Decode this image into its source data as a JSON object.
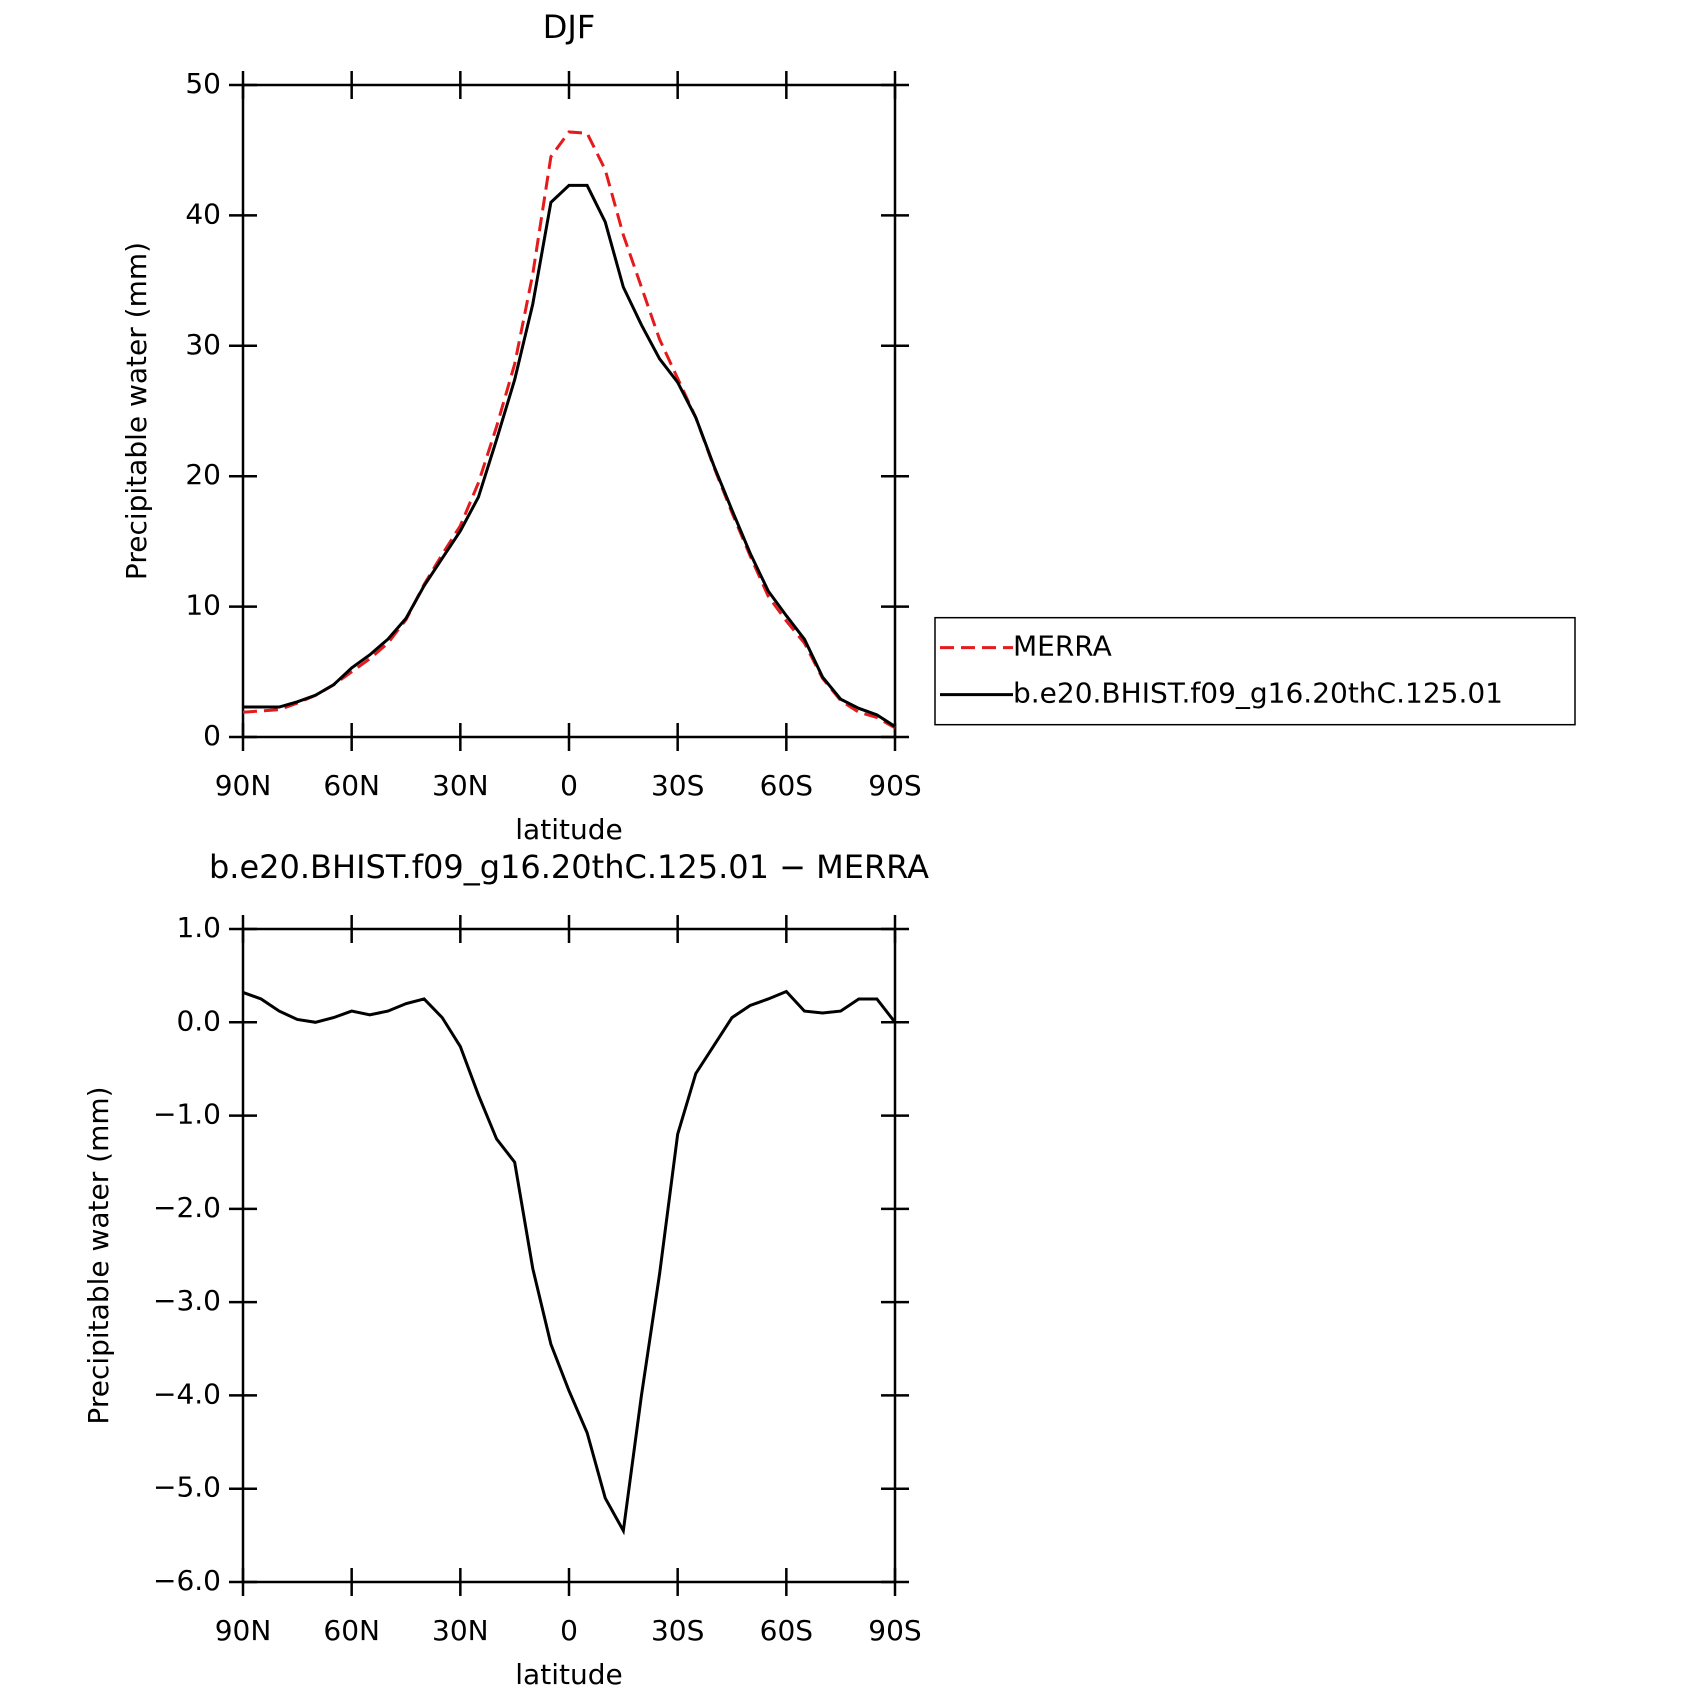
{
  "chart_data": [
    {
      "type": "line",
      "title": "DJF",
      "xlabel": "latitude",
      "ylabel": "Precipitable water (mm)",
      "x": [
        90,
        85,
        80,
        75,
        70,
        65,
        60,
        55,
        50,
        45,
        40,
        35,
        30,
        25,
        20,
        15,
        10,
        5,
        0,
        -5,
        -10,
        -15,
        -20,
        -25,
        -30,
        -35,
        -40,
        -45,
        -50,
        -55,
        -60,
        -65,
        -70,
        -75,
        -80,
        -85,
        -90
      ],
      "series": [
        {
          "name": "MERRA",
          "color": "#e41a1c",
          "linestyle": "dashed",
          "values": [
            1.9,
            2.0,
            2.1,
            2.6,
            3.2,
            4.0,
            5.0,
            6.0,
            7.2,
            9.0,
            11.7,
            14.0,
            16.2,
            19.5,
            23.8,
            28.6,
            35.5,
            44.5,
            46.4,
            46.3,
            43.5,
            38.5,
            34.5,
            30.5,
            27.5,
            24.5,
            20.7,
            17.2,
            13.9,
            10.8,
            8.9,
            7.2,
            4.5,
            2.8,
            1.9,
            1.5,
            0.7
          ]
        },
        {
          "name": "b.e20.BHIST.f09_g16.20thC.125.01",
          "color": "#000000",
          "linestyle": "solid",
          "values": [
            2.3,
            2.3,
            2.3,
            2.7,
            3.2,
            4.0,
            5.3,
            6.3,
            7.5,
            9.1,
            11.6,
            13.7,
            15.8,
            18.4,
            22.8,
            27.4,
            33.2,
            41.0,
            42.3,
            42.3,
            39.5,
            34.5,
            31.6,
            29.0,
            27.2,
            24.5,
            20.8,
            17.4,
            14.1,
            11.2,
            9.3,
            7.5,
            4.6,
            2.9,
            2.2,
            1.7,
            0.8
          ]
        }
      ],
      "xlim": [
        90,
        -90
      ],
      "xticks": [
        {
          "value": 90,
          "label": "90N"
        },
        {
          "value": 60,
          "label": "60N"
        },
        {
          "value": 30,
          "label": "30N"
        },
        0,
        {
          "value": -30,
          "label": "30S"
        },
        {
          "value": -60,
          "label": "60S"
        },
        {
          "value": -90,
          "label": "90S"
        }
      ],
      "ylim": [
        0,
        50
      ],
      "yticks": [
        0,
        10,
        20,
        30,
        40,
        50
      ],
      "grid": false,
      "legend": "right"
    },
    {
      "type": "line",
      "title": "b.e20.BHIST.f09_g16.20thC.125.01 − MERRA",
      "xlabel": "latitude",
      "ylabel": "Precipitable water (mm)",
      "x": [
        90,
        85,
        80,
        75,
        70,
        65,
        60,
        55,
        50,
        45,
        40,
        35,
        30,
        25,
        20,
        15,
        10,
        5,
        0,
        -5,
        -10,
        -15,
        -20,
        -25,
        -30,
        -35,
        -40,
        -45,
        -50,
        -55,
        -60,
        -65,
        -70,
        -75,
        -80,
        -85,
        -90
      ],
      "values": [
        0.32,
        0.25,
        0.12,
        0.03,
        0.0,
        0.05,
        0.12,
        0.08,
        0.12,
        0.2,
        0.25,
        0.05,
        -0.26,
        -0.78,
        -1.25,
        -1.5,
        -2.64,
        -3.45,
        -3.95,
        -4.4,
        -5.1,
        -5.45,
        -4.0,
        -2.7,
        -1.2,
        -0.55,
        -0.25,
        0.05,
        0.18,
        0.25,
        0.33,
        0.12,
        0.1,
        0.12,
        0.25,
        0.25,
        0.0
      ],
      "color": "#000000",
      "xlim": [
        90,
        -90
      ],
      "xticks": [
        {
          "value": 90,
          "label": "90N"
        },
        {
          "value": 60,
          "label": "60N"
        },
        {
          "value": 30,
          "label": "30N"
        },
        0,
        {
          "value": -30,
          "label": "30S"
        },
        {
          "value": -60,
          "label": "60S"
        },
        {
          "value": -90,
          "label": "90S"
        }
      ],
      "ylim": [
        -6,
        1
      ],
      "yticks": [
        {
          "value": -6,
          "label": "−6.0"
        },
        {
          "value": -5,
          "label": "−5.0"
        },
        {
          "value": -4,
          "label": "−4.0"
        },
        {
          "value": -3,
          "label": "−3.0"
        },
        {
          "value": -2,
          "label": "−2.0"
        },
        {
          "value": -1,
          "label": "−1.0"
        },
        {
          "value": 0,
          "label": "0.0"
        },
        {
          "value": 1,
          "label": "1.0"
        }
      ],
      "grid": false
    }
  ]
}
